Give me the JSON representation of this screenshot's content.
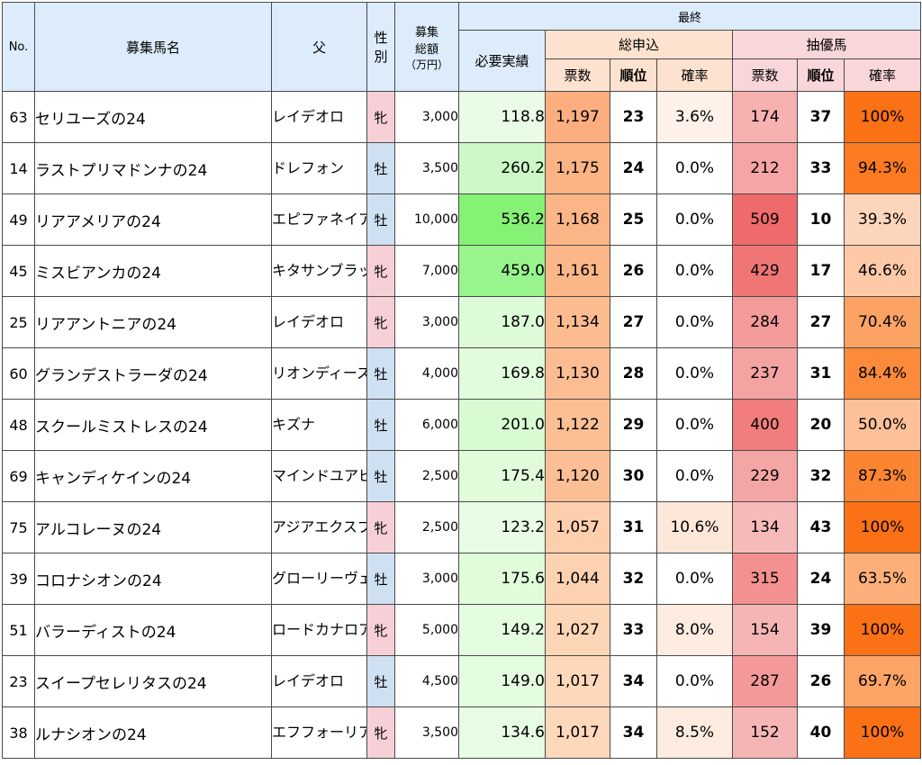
{
  "header": {
    "no": "No.",
    "name": "募集馬名",
    "sire": "父",
    "sex_line1": "性",
    "sex_line2": "別",
    "price_line1": "募集",
    "price_line2": "総額",
    "price_unit": "（万円）",
    "final": "最終",
    "required": "必要実績",
    "total_group": "総申込",
    "priority_group": "抽優馬",
    "votes": "票数",
    "rank": "順位",
    "prob": "確率"
  },
  "rows": [
    {
      "no": "63",
      "name": "セリユーズの24",
      "sire": "レイデオロ",
      "sex": "牝",
      "price": "3,000",
      "required": "118.8",
      "total_votes": "1,197",
      "total_rank": "23",
      "total_prob": "3.6%",
      "pri_votes": "174",
      "pri_rank": "37",
      "pri_prob": "100%",
      "c_req": "#e9fde6",
      "c_tv": "#fcae7e",
      "c_tp": "#fef1e9",
      "c_pv": "#f6b1b1",
      "c_pp": "#fb7116"
    },
    {
      "no": "14",
      "name": "ラストプリマドンナの24",
      "sire": "ドレフォン",
      "sex": "牡",
      "price": "3,500",
      "required": "260.2",
      "total_votes": "1,175",
      "total_rank": "24",
      "total_prob": "0.0%",
      "pri_votes": "212",
      "pri_rank": "33",
      "pri_prob": "94.3%",
      "c_req": "#cdf9c6",
      "c_tv": "#fcb384",
      "c_tp": "#ffffff",
      "c_pv": "#f5a5a5",
      "c_pp": "#fb7a22"
    },
    {
      "no": "49",
      "name": "リアアメリアの24",
      "sire": "エピファネイア",
      "sex": "牡",
      "price": "10,000",
      "required": "536.2",
      "total_votes": "1,168",
      "total_rank": "25",
      "total_prob": "0.0%",
      "pri_votes": "509",
      "pri_rank": "10",
      "pri_prob": "39.3%",
      "c_req": "#85f276",
      "c_tv": "#fcb586",
      "c_tp": "#ffffff",
      "c_pv": "#ef6a6a",
      "c_pp": "#fdd5bb"
    },
    {
      "no": "45",
      "name": "ミスビアンカの24",
      "sire": "キタサンブラック",
      "sex": "牝",
      "price": "7,000",
      "required": "459.0",
      "total_votes": "1,161",
      "total_rank": "26",
      "total_prob": "0.0%",
      "pri_votes": "429",
      "pri_rank": "17",
      "pri_prob": "46.6%",
      "c_req": "#98f48c",
      "c_tv": "#fcb788",
      "c_tp": "#ffffff",
      "c_pv": "#f07676",
      "c_pp": "#fdc9a6"
    },
    {
      "no": "25",
      "name": "リアアントニアの24",
      "sire": "レイデオロ",
      "sex": "牝",
      "price": "3,000",
      "required": "187.0",
      "total_votes": "1,134",
      "total_rank": "27",
      "total_prob": "0.0%",
      "pri_votes": "284",
      "pri_rank": "27",
      "pri_prob": "70.4%",
      "c_req": "#ddfbd8",
      "c_tv": "#fcbc90",
      "c_tp": "#ffffff",
      "c_pv": "#f39a9a",
      "c_pp": "#fca264"
    },
    {
      "no": "60",
      "name": "グランデストラーダの24",
      "sire": "リオンディーズ",
      "sex": "牡",
      "price": "4,000",
      "required": "169.8",
      "total_votes": "1,130",
      "total_rank": "28",
      "total_prob": "0.0%",
      "pri_votes": "237",
      "pri_rank": "31",
      "pri_prob": "84.4%",
      "c_req": "#e1fcdc",
      "c_tv": "#fcbd92",
      "c_tp": "#ffffff",
      "c_pv": "#f4a3a3",
      "c_pp": "#fb8a3a"
    },
    {
      "no": "48",
      "name": "スクールミストレスの24",
      "sire": "キズナ",
      "sex": "牡",
      "price": "6,000",
      "required": "201.0",
      "total_votes": "1,122",
      "total_rank": "29",
      "total_prob": "0.0%",
      "pri_votes": "400",
      "pri_rank": "20",
      "pri_prob": "50.0%",
      "c_req": "#d9fbd3",
      "c_tv": "#fcbf94",
      "c_tp": "#ffffff",
      "c_pv": "#f17d7d",
      "c_pp": "#fdc19a"
    },
    {
      "no": "69",
      "name": "キャンディケインの24",
      "sire": "マインドユアビスケッツ",
      "sex": "牡",
      "price": "2,500",
      "required": "175.4",
      "total_votes": "1,120",
      "total_rank": "30",
      "total_prob": "0.0%",
      "pri_votes": "229",
      "pri_rank": "32",
      "pri_prob": "87.3%",
      "c_req": "#e0fcdb",
      "c_tv": "#fcbf95",
      "c_tp": "#ffffff",
      "c_pv": "#f4a5a5",
      "c_pp": "#fb8532"
    },
    {
      "no": "75",
      "name": "アルコレーヌの24",
      "sire": "アジアエクスプレス",
      "sex": "牝",
      "price": "2,500",
      "required": "123.2",
      "total_votes": "1,057",
      "total_rank": "31",
      "total_prob": "10.6%",
      "pri_votes": "134",
      "pri_rank": "43",
      "pri_prob": "100%",
      "c_req": "#e8fde5",
      "c_tv": "#fdcfac",
      "c_tp": "#fde7d9",
      "c_pv": "#f7baba",
      "c_pp": "#fb7116"
    },
    {
      "no": "39",
      "name": "コロナシオンの24",
      "sire": "グローリーヴェイズ",
      "sex": "牡",
      "price": "3,000",
      "required": "175.6",
      "total_votes": "1,044",
      "total_rank": "32",
      "total_prob": "0.0%",
      "pri_votes": "315",
      "pri_rank": "24",
      "pri_prob": "63.5%",
      "c_req": "#e0fcdb",
      "c_tv": "#fdd2b0",
      "c_tp": "#ffffff",
      "c_pv": "#f39090",
      "c_pp": "#fcaf79"
    },
    {
      "no": "51",
      "name": "バラーディストの24",
      "sire": "ロードカナロア",
      "sex": "牝",
      "price": "5,000",
      "required": "149.2",
      "total_votes": "1,027",
      "total_rank": "33",
      "total_prob": "8.0%",
      "pri_votes": "154",
      "pri_rank": "39",
      "pri_prob": "100%",
      "c_req": "#e4fce0",
      "c_tv": "#fdd6b6",
      "c_tp": "#feece1",
      "c_pv": "#f6b5b5",
      "c_pp": "#fb7116"
    },
    {
      "no": "23",
      "name": "スイープセレリタスの24",
      "sire": "レイデオロ",
      "sex": "牡",
      "price": "4,500",
      "required": "149.0",
      "total_votes": "1,017",
      "total_rank": "34",
      "total_prob": "0.0%",
      "pri_votes": "287",
      "pri_rank": "26",
      "pri_prob": "69.7%",
      "c_req": "#e4fce0",
      "c_tv": "#fdd8ba",
      "c_tp": "#ffffff",
      "c_pv": "#f39999",
      "c_pp": "#fca366"
    },
    {
      "no": "38",
      "name": "ルナシオンの24",
      "sire": "エフフォーリア",
      "sex": "牝",
      "price": "3,500",
      "required": "134.6",
      "total_votes": "1,017",
      "total_rank": "34",
      "total_prob": "8.5%",
      "pri_votes": "152",
      "pri_rank": "40",
      "pri_prob": "100%",
      "c_req": "#e6fce3",
      "c_tv": "#fdd8ba",
      "c_tp": "#feebdf",
      "c_pv": "#f6b5b5",
      "c_pp": "#fb7116"
    }
  ]
}
